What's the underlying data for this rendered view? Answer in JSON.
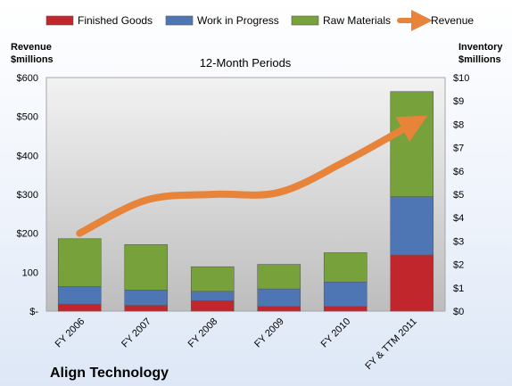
{
  "chart_data": {
    "type": "bar",
    "title": "12-Month Periods",
    "company": "Align Technology",
    "categories": [
      "FY 2006",
      "FY 2007",
      "FY 2008",
      "FY 2009",
      "FY 2010",
      "FY & TTM 2011"
    ],
    "left_axis": {
      "label_line1": "Revenue",
      "label_line2": "$millions",
      "ylim": [
        0,
        600
      ],
      "ticks": [
        0,
        100,
        200,
        300,
        400,
        500,
        600
      ],
      "tick_labels": [
        "$-",
        "100",
        "$200",
        "$300",
        "$400",
        "$500",
        "$600"
      ]
    },
    "right_axis": {
      "label_line1": "Inventory",
      "label_line2": "$millions",
      "ylim": [
        0,
        10
      ],
      "ticks": [
        0,
        1,
        2,
        3,
        4,
        5,
        6,
        7,
        8,
        9,
        10
      ],
      "tick_labels": [
        "$0",
        "$1",
        "$2",
        "$3",
        "$4",
        "$5",
        "$6",
        "$7",
        "$8",
        "$9",
        "$10"
      ]
    },
    "series": [
      {
        "name": "Finished Goods",
        "axis": "right",
        "color": "#c0262c",
        "values": [
          0.3,
          0.25,
          0.45,
          0.2,
          0.2,
          2.4
        ]
      },
      {
        "name": "Work in Progress",
        "axis": "right",
        "color": "#4f76b4",
        "values": [
          0.75,
          0.65,
          0.4,
          0.75,
          1.05,
          2.5
        ]
      },
      {
        "name": "Raw Materials",
        "axis": "right",
        "color": "#77a13a",
        "values": [
          2.05,
          1.95,
          1.05,
          1.05,
          1.25,
          4.5
        ]
      },
      {
        "name": "Revenue",
        "axis": "left",
        "type": "line",
        "color": "#e8833a",
        "values": [
          200,
          285,
          300,
          305,
          385,
          480
        ]
      }
    ],
    "grid": false,
    "legend_position": "top"
  }
}
